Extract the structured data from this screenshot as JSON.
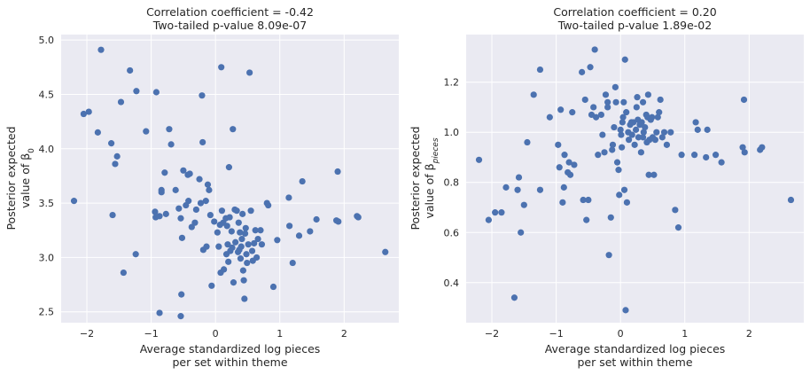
{
  "chart_data": [
    {
      "type": "scatter",
      "title_lines": [
        "Correlation coefficient = -0.42",
        "Two-tailed p-value 8.09e-07"
      ],
      "xlabel_lines": [
        "Average standardized log pieces",
        "per set within theme"
      ],
      "ylabel_lines": [
        "Posterior expected",
        "value of β₀"
      ],
      "xlim": [
        -2.4,
        2.85
      ],
      "ylim": [
        2.4,
        5.05
      ],
      "xticks": [
        -2,
        -1,
        0,
        1,
        2
      ],
      "yticks": [
        2.5,
        3.0,
        3.5,
        4.0,
        4.5,
        5.0
      ],
      "xtick_labels": [
        "−2",
        "−1",
        "0",
        "1",
        "2"
      ],
      "ytick_labels": [
        "2.5",
        "3.0",
        "3.5",
        "4.0",
        "4.5",
        "5.0"
      ],
      "grid": true,
      "color": "#4c72b0",
      "points": [
        [
          -2.2,
          3.52
        ],
        [
          -2.05,
          4.32
        ],
        [
          -1.97,
          4.34
        ],
        [
          -1.83,
          4.15
        ],
        [
          -1.78,
          4.91
        ],
        [
          -1.62,
          4.05
        ],
        [
          -1.6,
          3.39
        ],
        [
          -1.56,
          3.86
        ],
        [
          -1.53,
          3.93
        ],
        [
          -1.47,
          4.43
        ],
        [
          -1.43,
          2.86
        ],
        [
          -1.33,
          4.72
        ],
        [
          -1.23,
          4.53
        ],
        [
          -1.24,
          3.03
        ],
        [
          -1.08,
          4.16
        ],
        [
          -0.92,
          4.52
        ],
        [
          -0.94,
          3.42
        ],
        [
          -0.93,
          3.37
        ],
        [
          -0.87,
          3.38
        ],
        [
          -0.84,
          3.6
        ],
        [
          -0.84,
          3.62
        ],
        [
          -0.87,
          2.49
        ],
        [
          -0.79,
          3.78
        ],
        [
          -0.77,
          3.4
        ],
        [
          -0.72,
          4.18
        ],
        [
          -0.69,
          4.04
        ],
        [
          -0.62,
          3.62
        ],
        [
          -0.57,
          3.45
        ],
        [
          -0.54,
          3.36
        ],
        [
          -0.52,
          3.18
        ],
        [
          -0.5,
          3.8
        ],
        [
          -0.46,
          3.48
        ],
        [
          -0.43,
          3.76
        ],
        [
          -0.42,
          3.52
        ],
        [
          -0.4,
          3.77
        ],
        [
          -0.37,
          3.28
        ],
        [
          -0.32,
          3.32
        ],
        [
          -0.3,
          3.44
        ],
        [
          -0.25,
          3.72
        ],
        [
          -0.23,
          3.5
        ],
        [
          -0.21,
          4.49
        ],
        [
          -0.2,
          4.06
        ],
        [
          -0.19,
          3.07
        ],
        [
          -0.15,
          3.52
        ],
        [
          -0.14,
          3.1
        ],
        [
          -0.12,
          3.67
        ],
        [
          -0.1,
          3.62
        ],
        [
          -0.08,
          3.39
        ],
        [
          -0.06,
          2.74
        ],
        [
          -0.02,
          3.33
        ],
        [
          0.03,
          3.23
        ],
        [
          0.05,
          3.1
        ],
        [
          0.07,
          3.3
        ],
        [
          0.09,
          4.75
        ],
        [
          0.1,
          3.43
        ],
        [
          0.12,
          3.32
        ],
        [
          0.08,
          2.86
        ],
        [
          0.13,
          2.89
        ],
        [
          0.16,
          3.36
        ],
        [
          0.17,
          3.03
        ],
        [
          0.18,
          3.29
        ],
        [
          0.19,
          3.12
        ],
        [
          0.2,
          2.96
        ],
        [
          0.21,
          3.83
        ],
        [
          0.22,
          3.37
        ],
        [
          0.23,
          3.06
        ],
        [
          0.25,
          3.24
        ],
        [
          0.26,
          3.09
        ],
        [
          0.27,
          4.18
        ],
        [
          0.28,
          2.77
        ],
        [
          0.3,
          3.44
        ],
        [
          0.31,
          3.14
        ],
        [
          0.33,
          3.43
        ],
        [
          0.35,
          3.05
        ],
        [
          0.36,
          3.32
        ],
        [
          0.37,
          3.07
        ],
        [
          0.38,
          3.23
        ],
        [
          0.39,
          2.99
        ],
        [
          0.4,
          3.1
        ],
        [
          0.41,
          3.17
        ],
        [
          0.42,
          3.4
        ],
        [
          0.43,
          2.88
        ],
        [
          0.44,
          2.79
        ],
        [
          0.45,
          2.62
        ],
        [
          0.46,
          3.22
        ],
        [
          0.47,
          3.27
        ],
        [
          0.48,
          3.03
        ],
        [
          0.49,
          2.95
        ],
        [
          0.51,
          3.12
        ],
        [
          0.53,
          4.7
        ],
        [
          0.55,
          3.43
        ],
        [
          0.57,
          3.06
        ],
        [
          0.58,
          2.97
        ],
        [
          0.6,
          3.13
        ],
        [
          0.62,
          3.25
        ],
        [
          0.64,
          3.0
        ],
        [
          0.66,
          3.17
        ],
        [
          0.7,
          3.25
        ],
        [
          0.72,
          3.12
        ],
        [
          0.8,
          3.5
        ],
        [
          0.82,
          3.48
        ],
        [
          0.9,
          2.73
        ],
        [
          0.96,
          3.16
        ],
        [
          1.14,
          3.55
        ],
        [
          1.15,
          3.29
        ],
        [
          1.2,
          2.95
        ],
        [
          1.3,
          3.2
        ],
        [
          1.35,
          3.7
        ],
        [
          1.47,
          3.24
        ],
        [
          1.57,
          3.35
        ],
        [
          1.88,
          3.34
        ],
        [
          1.9,
          3.79
        ],
        [
          1.91,
          3.33
        ],
        [
          2.2,
          3.38
        ],
        [
          2.22,
          3.37
        ],
        [
          2.64,
          3.05
        ],
        [
          -0.54,
          2.46
        ],
        [
          -0.53,
          2.66
        ]
      ]
    },
    {
      "type": "scatter",
      "title_lines": [
        "Correlation coefficient = 0.20",
        "Two-tailed p-value 1.89e-02"
      ],
      "xlabel_lines": [
        "Average standardized log pieces",
        "per set within theme"
      ],
      "ylabel_lines": [
        "Posterior expected",
        "value of βpieces"
      ],
      "xlim": [
        -2.4,
        2.85
      ],
      "ylim": [
        0.24,
        1.39
      ],
      "xticks": [
        -2,
        -1,
        0,
        1,
        2
      ],
      "yticks": [
        0.4,
        0.6,
        0.8,
        1.0,
        1.2
      ],
      "xtick_labels": [
        "−2",
        "−1",
        "0",
        "1",
        "2"
      ],
      "ytick_labels": [
        "0.4",
        "0.6",
        "0.8",
        "1.0",
        "1.2"
      ],
      "grid": true,
      "color": "#4c72b0",
      "points": [
        [
          -2.2,
          0.89
        ],
        [
          -2.05,
          0.65
        ],
        [
          -1.95,
          0.68
        ],
        [
          -1.85,
          0.68
        ],
        [
          -1.78,
          0.78
        ],
        [
          -1.65,
          0.34
        ],
        [
          -1.6,
          0.77
        ],
        [
          -1.58,
          0.82
        ],
        [
          -1.55,
          0.6
        ],
        [
          -1.5,
          0.71
        ],
        [
          -1.45,
          0.96
        ],
        [
          -1.35,
          1.15
        ],
        [
          -1.25,
          1.25
        ],
        [
          -1.25,
          0.77
        ],
        [
          -1.1,
          1.06
        ],
        [
          -0.97,
          0.95
        ],
        [
          -0.95,
          0.86
        ],
        [
          -0.93,
          1.09
        ],
        [
          -0.9,
          0.72
        ],
        [
          -0.88,
          0.78
        ],
        [
          -0.87,
          0.91
        ],
        [
          -0.82,
          0.84
        ],
        [
          -0.8,
          0.88
        ],
        [
          -0.78,
          0.83
        ],
        [
          -0.75,
          1.08
        ],
        [
          -0.72,
          0.87
        ],
        [
          -0.6,
          1.24
        ],
        [
          -0.58,
          0.73
        ],
        [
          -0.55,
          1.13
        ],
        [
          -0.53,
          0.65
        ],
        [
          -0.5,
          0.73
        ],
        [
          -0.47,
          1.26
        ],
        [
          -0.45,
          1.07
        ],
        [
          -0.42,
          1.1
        ],
        [
          -0.4,
          1.33
        ],
        [
          -0.38,
          1.06
        ],
        [
          -0.35,
          0.91
        ],
        [
          -0.3,
          1.07
        ],
        [
          -0.28,
          0.99
        ],
        [
          -0.25,
          0.92
        ],
        [
          -0.23,
          1.15
        ],
        [
          -0.2,
          1.12
        ],
        [
          -0.18,
          0.51
        ],
        [
          -0.15,
          0.66
        ],
        [
          -0.13,
          0.93
        ],
        [
          -0.12,
          0.95
        ],
        [
          -0.1,
          1.02
        ],
        [
          -0.08,
          1.18
        ],
        [
          -0.07,
          1.12
        ],
        [
          -0.05,
          0.88
        ],
        [
          -0.03,
          0.85
        ],
        [
          -0.02,
          0.75
        ],
        [
          0.0,
          1.01
        ],
        [
          0.01,
          0.99
        ],
        [
          0.02,
          0.94
        ],
        [
          0.03,
          1.04
        ],
        [
          0.04,
          1.06
        ],
        [
          0.05,
          1.12
        ],
        [
          0.06,
          0.77
        ],
        [
          0.07,
          1.29
        ],
        [
          0.08,
          0.29
        ],
        [
          0.09,
          1.08
        ],
        [
          0.1,
          0.72
        ],
        [
          0.12,
          1.0
        ],
        [
          0.13,
          0.97
        ],
        [
          0.15,
          1.03
        ],
        [
          0.17,
          1.04
        ],
        [
          0.18,
          0.99
        ],
        [
          0.2,
          1.04
        ],
        [
          0.22,
          0.95
        ],
        [
          0.24,
          1.01
        ],
        [
          0.25,
          1.1
        ],
        [
          0.26,
          1.14
        ],
        [
          0.27,
          1.05
        ],
        [
          0.28,
          0.98
        ],
        [
          0.3,
          1.03
        ],
        [
          0.32,
          0.92
        ],
        [
          0.33,
          1.04
        ],
        [
          0.35,
          1.12
        ],
        [
          0.36,
          1.0
        ],
        [
          0.38,
          1.02
        ],
        [
          0.4,
          1.07
        ],
        [
          0.41,
          0.96
        ],
        [
          0.42,
          1.06
        ],
        [
          0.43,
          1.15
        ],
        [
          0.44,
          0.83
        ],
        [
          0.45,
          0.97
        ],
        [
          0.47,
          1.05
        ],
        [
          0.49,
          1.06
        ],
        [
          0.5,
          0.98
        ],
        [
          0.52,
          0.83
        ],
        [
          0.54,
          0.97
        ],
        [
          0.56,
          1.0
        ],
        [
          0.58,
          1.06
        ],
        [
          0.6,
          1.08
        ],
        [
          0.62,
          1.13
        ],
        [
          0.65,
          0.98
        ],
        [
          0.68,
          1.0
        ],
        [
          0.72,
          0.95
        ],
        [
          0.78,
          1.0
        ],
        [
          0.85,
          0.69
        ],
        [
          0.9,
          0.62
        ],
        [
          0.95,
          0.91
        ],
        [
          1.15,
          0.91
        ],
        [
          1.17,
          1.04
        ],
        [
          1.2,
          1.01
        ],
        [
          1.33,
          0.9
        ],
        [
          1.35,
          1.01
        ],
        [
          1.48,
          0.91
        ],
        [
          1.57,
          0.88
        ],
        [
          1.9,
          0.94
        ],
        [
          1.92,
          1.13
        ],
        [
          1.93,
          0.92
        ],
        [
          2.17,
          0.93
        ],
        [
          2.2,
          0.94
        ],
        [
          2.65,
          0.73
        ],
        [
          0.35,
          0.98
        ],
        [
          -0.2,
          1.1
        ]
      ]
    }
  ]
}
